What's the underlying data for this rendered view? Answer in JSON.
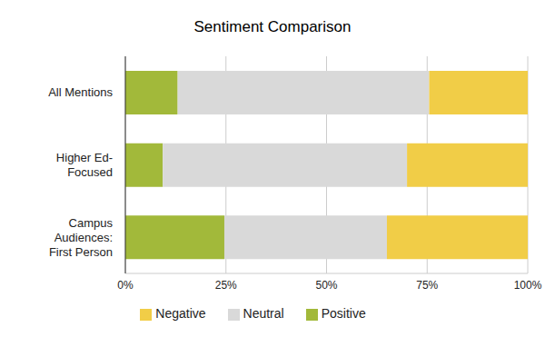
{
  "chart_data": {
    "type": "bar",
    "title": "Sentiment Comparison",
    "orientation": "horizontal",
    "stacked": true,
    "categories": [
      "All Mentions",
      "Higher Ed-Focused",
      "Campus Audiences: First Person"
    ],
    "series": [
      {
        "name": "Positive",
        "color": "#a2b93a",
        "values": [
          13,
          9.3,
          24.6
        ]
      },
      {
        "name": "Neutral",
        "color": "#d9d9d9",
        "values": [
          62.5,
          60.7,
          40.4
        ]
      },
      {
        "name": "Negative",
        "color": "#f1cd47",
        "values": [
          24.5,
          30,
          35
        ]
      }
    ],
    "xlim": [
      0,
      100
    ],
    "xticks": [
      {
        "value": 0,
        "label": "0%"
      },
      {
        "value": 25,
        "label": "25%"
      },
      {
        "value": 50,
        "label": "50%"
      },
      {
        "value": 75,
        "label": "75%"
      },
      {
        "value": 100,
        "label": "100%"
      }
    ],
    "grid": true,
    "legend": "bottom"
  }
}
